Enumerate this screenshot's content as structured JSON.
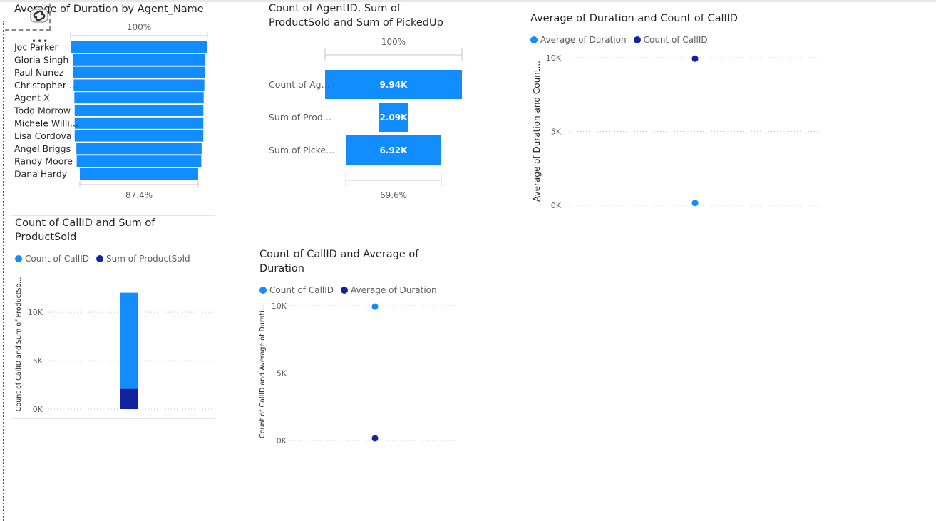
{
  "colors": {
    "light_blue": "#118dff",
    "dark_blue": "#12239e",
    "grid": "#c8c6c4",
    "axis_text": "#605e5c"
  },
  "visual1": {
    "title": "Average of Duration by Agent_Name",
    "top_label": "100%",
    "bottom_label": "87.4%",
    "more_options": "•••"
  },
  "visual2": {
    "title": "Count of AgentID, Sum of\nProductSold and Sum of PickedUp",
    "top_label": "100%",
    "bottom_label": "69.6%"
  },
  "visual3": {
    "title": "Average of Duration and Count of CallID",
    "legend": [
      "Average of Duration",
      "Count of CallID"
    ],
    "ylabel": "Average of Duration and Count..."
  },
  "visual4": {
    "title": "Count of CallID and Sum of\nProductSold",
    "legend": [
      "Count of CallID",
      "Sum of ProductSold"
    ],
    "ylabel": "Count of CallID and Sum of ProductSo..."
  },
  "visual5": {
    "title": "Count of CallID and Average of\nDuration",
    "legend": [
      "Count of CallID",
      "Average of Duration"
    ],
    "ylabel": "Count of CallID and Average of Durati..."
  },
  "chart_data": [
    {
      "type": "bar",
      "title": "Average of Duration by Agent_Name",
      "categories": [
        "Joe Parker",
        "Gloria Singh",
        "Paul Nunez",
        "Christopher ...",
        "Agent X",
        "Todd Morrow",
        "Michele Willi...",
        "Lisa Cordova",
        "Angel Briggs",
        "Randy Moore",
        "Dana Hardy"
      ],
      "category_labels": [
        "Joc    Parker",
        "Gloria Singh",
        "Paul Nunez",
        "Christopher ...",
        "Agent X",
        "Todd Morrow",
        "Michele Willi...",
        "Lisa Cordova",
        "Angel Briggs",
        "Randy Moore",
        "Dana Hardy"
      ],
      "values_pct": [
        100,
        98,
        97,
        96.5,
        95.5,
        95,
        95,
        95,
        92.5,
        92,
        87.4
      ],
      "annotations": [
        "100%",
        "87.4%"
      ]
    },
    {
      "type": "bar",
      "title": "Count of AgentID, Sum of ProductSold and Sum of PickedUp",
      "categories": [
        "Count of Ag...",
        "Sum of Prod...",
        "Sum of Picke..."
      ],
      "values": [
        9940,
        2090,
        6920
      ],
      "data_labels": [
        "9.94K",
        "2.09K",
        "6.92K"
      ],
      "annotations": [
        "100%",
        "69.6%"
      ]
    },
    {
      "type": "scatter",
      "title": "Average of Duration and Count of CallID",
      "series": [
        {
          "name": "Average of Duration",
          "values": [
            160
          ]
        },
        {
          "name": "Count of CallID",
          "values": [
            9940
          ]
        }
      ],
      "yticks": [
        "10K",
        "5K",
        "0K"
      ],
      "ylim": [
        0,
        10000
      ],
      "ylabel": "Average of Duration and Count...",
      "grid": true,
      "legend_position": "top-left"
    },
    {
      "type": "bar",
      "stacked": true,
      "title": "Count of CallID and Sum of ProductSold",
      "series": [
        {
          "name": "Count of CallID",
          "values": [
            9940
          ]
        },
        {
          "name": "Sum of ProductSold",
          "values": [
            2090
          ]
        }
      ],
      "yticks": [
        "10K",
        "5K",
        "0K"
      ],
      "ylim": [
        0,
        12000
      ],
      "ylabel": "Count of CallID and Sum of ProductSo...",
      "grid": true,
      "legend_position": "top-left"
    },
    {
      "type": "scatter",
      "title": "Count of CallID and Average of Duration",
      "series": [
        {
          "name": "Count of CallID",
          "values": [
            9940
          ]
        },
        {
          "name": "Average of Duration",
          "values": [
            160
          ]
        }
      ],
      "yticks": [
        "10K",
        "5K",
        "0K"
      ],
      "ylim": [
        0,
        10000
      ],
      "ylabel": "Count of CallID and Average of Durati...",
      "grid": true,
      "legend_position": "top-left"
    }
  ]
}
